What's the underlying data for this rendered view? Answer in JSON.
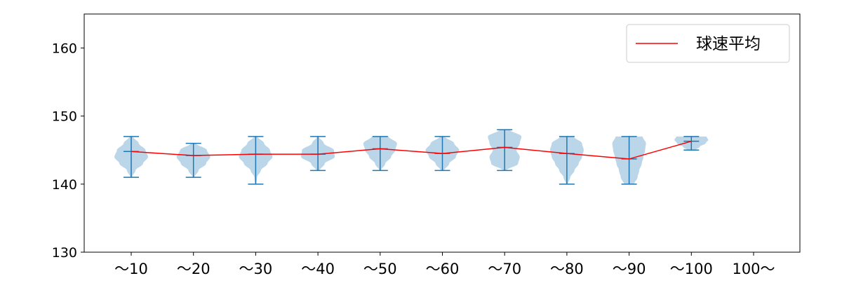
{
  "chart_data": {
    "type": "violin",
    "title": "",
    "xlabel": "",
    "ylabel": "",
    "ylim": [
      130,
      165
    ],
    "yticks": [
      130,
      140,
      150,
      160
    ],
    "grid": false,
    "categories": [
      "～10",
      "～20",
      "～30",
      "～40",
      "～50",
      "～60",
      "～70",
      "～80",
      "～90",
      "～100",
      "100～"
    ],
    "violins": [
      {
        "category": "～10",
        "min": 141,
        "max": 147,
        "mean": 144.8,
        "widths": [
          [
            141,
            0.05
          ],
          [
            142,
            0.25
          ],
          [
            143,
            0.7
          ],
          [
            144,
            1.0
          ],
          [
            145,
            0.85
          ],
          [
            146,
            0.45
          ],
          [
            147,
            0.1
          ]
        ]
      },
      {
        "category": "～20",
        "min": 141,
        "max": 146,
        "mean": 144.2,
        "widths": [
          [
            141,
            0.05
          ],
          [
            142,
            0.3
          ],
          [
            143,
            0.75
          ],
          [
            144,
            1.0
          ],
          [
            145,
            0.8
          ],
          [
            146,
            0.15
          ]
        ]
      },
      {
        "category": "～30",
        "min": 140,
        "max": 147,
        "mean": 144.4,
        "widths": [
          [
            140,
            0.04
          ],
          [
            141,
            0.08
          ],
          [
            142,
            0.3
          ],
          [
            143,
            0.7
          ],
          [
            144,
            1.0
          ],
          [
            145,
            0.85
          ],
          [
            146,
            0.5
          ],
          [
            147,
            0.1
          ]
        ]
      },
      {
        "category": "～40",
        "min": 142,
        "max": 147,
        "mean": 144.4,
        "widths": [
          [
            142,
            0.1
          ],
          [
            143,
            0.4
          ],
          [
            144,
            1.0
          ],
          [
            145,
            0.95
          ],
          [
            146,
            0.35
          ],
          [
            147,
            0.05
          ]
        ]
      },
      {
        "category": "～50",
        "min": 142,
        "max": 147,
        "mean": 145.2,
        "widths": [
          [
            142,
            0.05
          ],
          [
            143,
            0.3
          ],
          [
            144,
            0.65
          ],
          [
            145,
            0.9
          ],
          [
            146,
            1.0
          ],
          [
            147,
            0.5
          ]
        ]
      },
      {
        "category": "～60",
        "min": 142,
        "max": 147,
        "mean": 144.5,
        "widths": [
          [
            142,
            0.1
          ],
          [
            143,
            0.4
          ],
          [
            144,
            0.8
          ],
          [
            145,
            1.0
          ],
          [
            146,
            0.7
          ],
          [
            147,
            0.15
          ]
        ]
      },
      {
        "category": "～70",
        "min": 142,
        "max": 148,
        "mean": 145.4,
        "widths": [
          [
            142,
            0.1
          ],
          [
            143,
            0.8
          ],
          [
            144,
            0.9
          ],
          [
            145,
            0.7
          ],
          [
            146,
            0.9
          ],
          [
            147,
            1.0
          ],
          [
            148,
            0.3
          ]
        ]
      },
      {
        "category": "～80",
        "min": 140,
        "max": 147,
        "mean": 144.5,
        "widths": [
          [
            140,
            0.05
          ],
          [
            141,
            0.2
          ],
          [
            142,
            0.45
          ],
          [
            143,
            0.7
          ],
          [
            144,
            0.9
          ],
          [
            145,
            1.0
          ],
          [
            146,
            0.9
          ],
          [
            147,
            0.4
          ]
        ]
      },
      {
        "category": "～90",
        "min": 140,
        "max": 147,
        "mean": 143.7,
        "widths": [
          [
            140,
            0.3
          ],
          [
            141,
            0.5
          ],
          [
            142,
            0.6
          ],
          [
            143,
            0.75
          ],
          [
            144,
            0.85
          ],
          [
            145,
            0.95
          ],
          [
            146,
            1.0
          ],
          [
            147,
            0.8
          ]
        ]
      },
      {
        "category": "～100",
        "min": 145,
        "max": 147,
        "mean": 146.3,
        "widths": [
          [
            145,
            0.25
          ],
          [
            145.5,
            0.5
          ],
          [
            146,
            0.85
          ],
          [
            146.5,
            1.0
          ],
          [
            147,
            0.9
          ]
        ]
      },
      {
        "category": "100～",
        "min": null,
        "max": null,
        "mean": null,
        "widths": []
      }
    ],
    "series": [
      {
        "name": "球速平均",
        "type": "line",
        "values": [
          144.8,
          144.2,
          144.4,
          144.4,
          145.2,
          144.5,
          145.4,
          144.5,
          143.7,
          146.3,
          null
        ]
      }
    ],
    "legend": {
      "position": "top-right",
      "entries": [
        "球速平均"
      ]
    },
    "colors": {
      "violin_fill": "#1f77b4",
      "violin_fill_opacity": "0.3",
      "whisker": "#1f77b4",
      "mean_line": "#ff0000",
      "axis": "#000000"
    }
  }
}
